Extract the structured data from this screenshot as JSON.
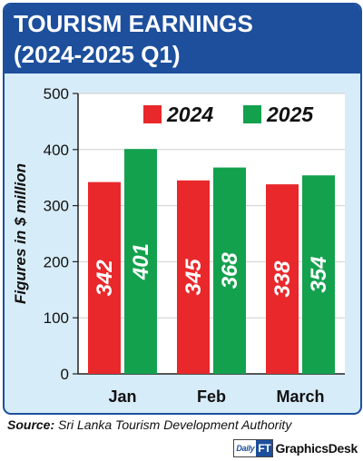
{
  "header": {
    "title_line1": "TOURISM EARNINGS",
    "title_line2": "(2024-2025 Q1)"
  },
  "chart_data": {
    "type": "bar",
    "categories": [
      "Jan",
      "Feb",
      "March"
    ],
    "series": [
      {
        "name": "2024",
        "values": [
          342,
          345,
          338
        ],
        "color": "#e8282b"
      },
      {
        "name": "2025",
        "values": [
          401,
          368,
          354
        ],
        "color": "#14a14e"
      }
    ],
    "title": "TOURISM EARNINGS (2024-2025 Q1)",
    "xlabel": "",
    "ylabel": "Figures in $ million",
    "ylim": [
      0,
      500
    ],
    "yticks": [
      0,
      100,
      200,
      300,
      400,
      500
    ],
    "grid": true,
    "legend": "top-right"
  },
  "footer": {
    "source_label": "Source:",
    "source_text": "Sri Lanka Tourism Development Authority",
    "logo_daily": "Daily",
    "logo_ft": "FT",
    "credit": "GraphicsDesk"
  }
}
